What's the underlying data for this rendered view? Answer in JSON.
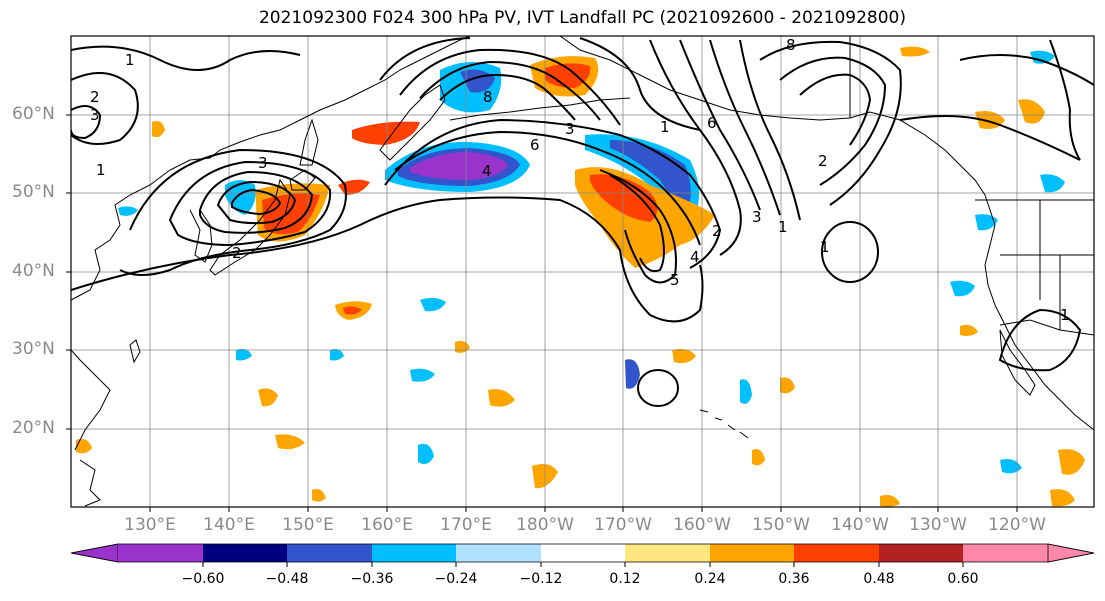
{
  "title": "2021092300 F024 300 hPa PV, IVT Landfall PC (2021092600 - 2021092800)",
  "lat_labels": [
    "60°N",
    "50°N",
    "40°N",
    "30°N",
    "20°N"
  ],
  "lon_labels": [
    "130°E",
    "140°E",
    "150°E",
    "160°E",
    "170°E",
    "180°W",
    "170°W",
    "160°W",
    "150°W",
    "140°W",
    "130°W",
    "120°W"
  ],
  "colorbar": {
    "ticks": [
      "−0.60",
      "−0.48",
      "−0.36",
      "−0.24",
      "−0.12",
      "0.12",
      "0.24",
      "0.36",
      "0.48",
      "0.60"
    ],
    "colors": [
      "#9933cc",
      "#000080",
      "#3355cc",
      "#00bfff",
      "#b0e0ff",
      "#ffffff",
      "#ffe680",
      "#ffa500",
      "#ff4000",
      "#b22222",
      "#ff88aa"
    ]
  },
  "contour_labels": [
    "1",
    "2",
    "3",
    "1",
    "2",
    "3",
    "4",
    "6",
    "8",
    "3",
    "6",
    "1",
    "2",
    "4",
    "5",
    "8",
    "1",
    "2",
    "3",
    "1",
    "1"
  ],
  "shading_colors": {
    "neg_light": "#b0e0ff",
    "neg_mid": "#00bfff",
    "neg_strong": "#3355cc",
    "neg_max": "#9933cc",
    "pos_light": "#ffe680",
    "pos_mid": "#ffa500",
    "pos_strong": "#ff4000"
  }
}
